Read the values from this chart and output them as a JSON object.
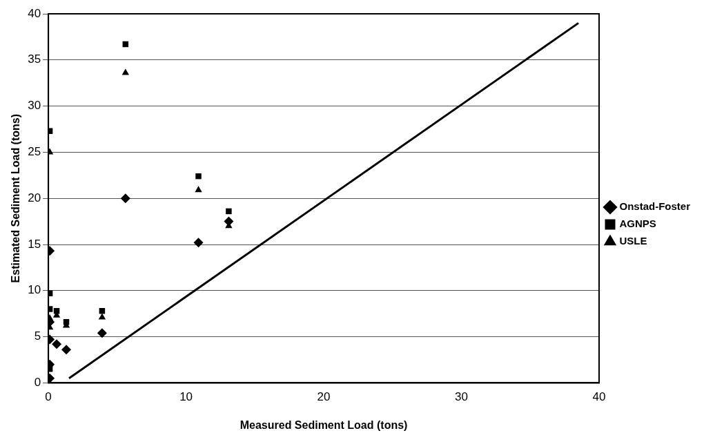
{
  "chart_data": {
    "type": "scatter",
    "xlabel": "Measured Sediment Load (tons)",
    "ylabel": "Estimated Sediment Load (tons)",
    "x": [
      0.1,
      0.1,
      0.1,
      0.1,
      0.1,
      0.6,
      1.3,
      3.9,
      5.6,
      10.9,
      13.1
    ],
    "series": [
      {
        "name": "Onstad-Foster",
        "color": "#000000",
        "marker": "diamond",
        "values": [
          14.3,
          6.6,
          4.7,
          2.0,
          0.5,
          4.2,
          3.6,
          5.4,
          20.0,
          15.2,
          17.5
        ]
      },
      {
        "name": "AGNPS",
        "color": "#000000",
        "marker": "square",
        "values": [
          27.3,
          9.7,
          8.0,
          1.5,
          null,
          7.8,
          6.6,
          7.8,
          36.7,
          22.4,
          18.6
        ]
      },
      {
        "name": "USLE",
        "color": "#000000",
        "marker": "triangle",
        "values": [
          25.0,
          7.0,
          6.0,
          null,
          null,
          7.3,
          6.2,
          7.1,
          33.6,
          20.9,
          17.0
        ]
      },
      {
        "type": "line",
        "color": "#000000",
        "marker": "none",
        "x": [
          1.5,
          38.5
        ],
        "values": [
          0.5,
          39
        ]
      }
    ],
    "xlim": [
      0,
      40
    ],
    "xticks": [
      0,
      10,
      20,
      30,
      40
    ],
    "ylim": [
      0,
      40
    ],
    "yticks": [
      0,
      5,
      10,
      15,
      20,
      25,
      30,
      35,
      40
    ],
    "grid": "y",
    "legend": "right"
  }
}
